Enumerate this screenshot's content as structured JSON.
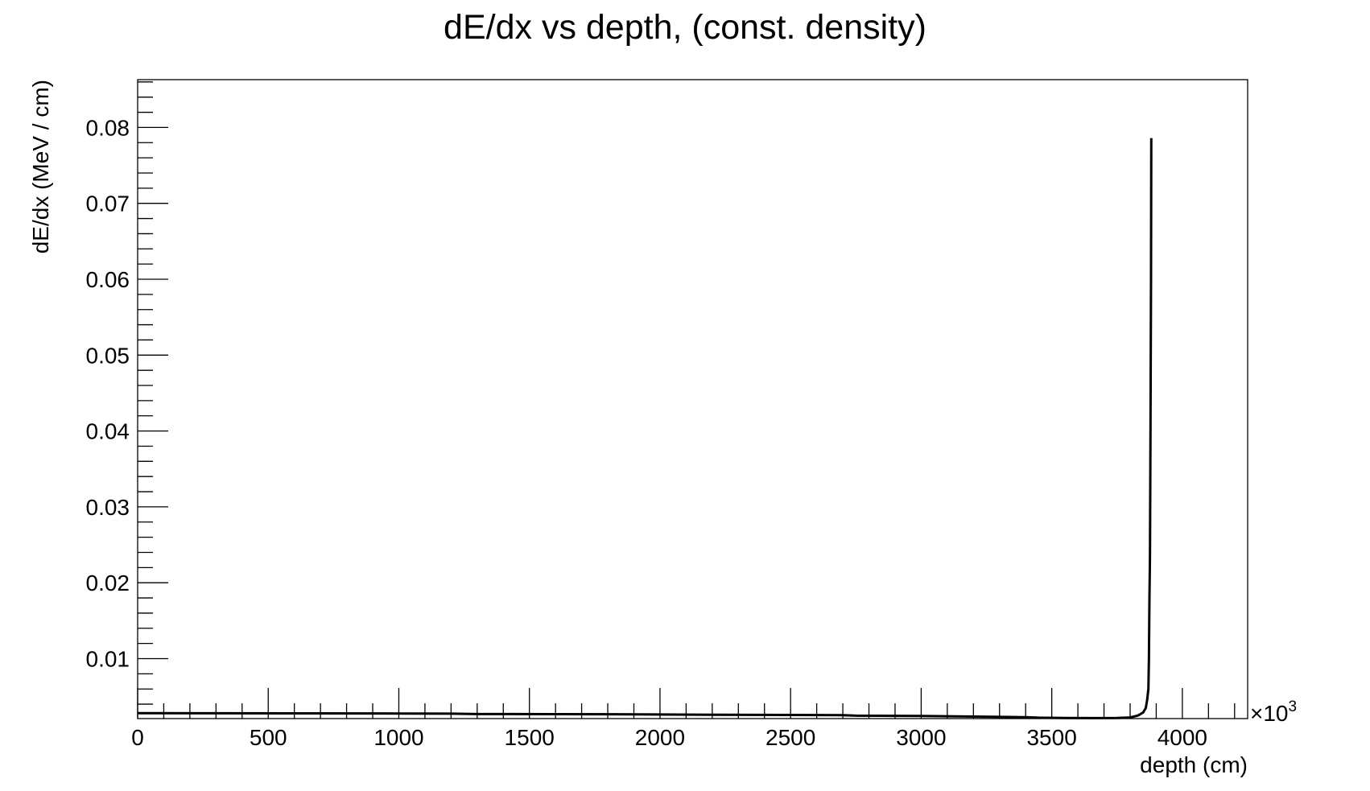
{
  "chart_data": {
    "type": "line",
    "title": "dE/dx vs depth, (const. density)",
    "xlabel": "depth (cm)",
    "ylabel": "dE/dx (MeV / cm)",
    "x_multiplier_label": "×10",
    "x_multiplier_exponent": "3",
    "xlim": [
      0,
      4250
    ],
    "ylim": [
      0.0021,
      0.0863
    ],
    "x_ticks": [
      0,
      500,
      1000,
      1500,
      2000,
      2500,
      3000,
      3500,
      4000
    ],
    "x_tick_labels": [
      "0",
      "500",
      "1000",
      "1500",
      "2000",
      "2500",
      "3000",
      "3500",
      "4000"
    ],
    "y_ticks": [
      0.01,
      0.02,
      0.03,
      0.04,
      0.05,
      0.06,
      0.07,
      0.08
    ],
    "y_tick_labels": [
      "0.01",
      "0.02",
      "0.03",
      "0.04",
      "0.05",
      "0.06",
      "0.07",
      "0.08"
    ],
    "grid": false,
    "line_color": "#000000",
    "series": [
      {
        "x": [
          0,
          300,
          600,
          900,
          1200,
          1300,
          1600,
          1900,
          2200,
          2500,
          2700,
          2750,
          3000,
          3100,
          3200,
          3300,
          3400,
          3450,
          3550,
          3650,
          3750,
          3800,
          3830,
          3850,
          3860,
          3865,
          3870,
          3872,
          3874,
          3876,
          3878,
          3880,
          3881
        ],
        "y": [
          0.00282,
          0.0028,
          0.00279,
          0.00277,
          0.00275,
          0.0027,
          0.00268,
          0.00266,
          0.0026,
          0.00258,
          0.00255,
          0.00248,
          0.00245,
          0.0024,
          0.00236,
          0.00233,
          0.00228,
          0.00222,
          0.00218,
          0.00216,
          0.00218,
          0.00225,
          0.0025,
          0.0029,
          0.0035,
          0.0045,
          0.006,
          0.01,
          0.018,
          0.0235,
          0.04,
          0.06,
          0.0786
        ]
      }
    ]
  }
}
